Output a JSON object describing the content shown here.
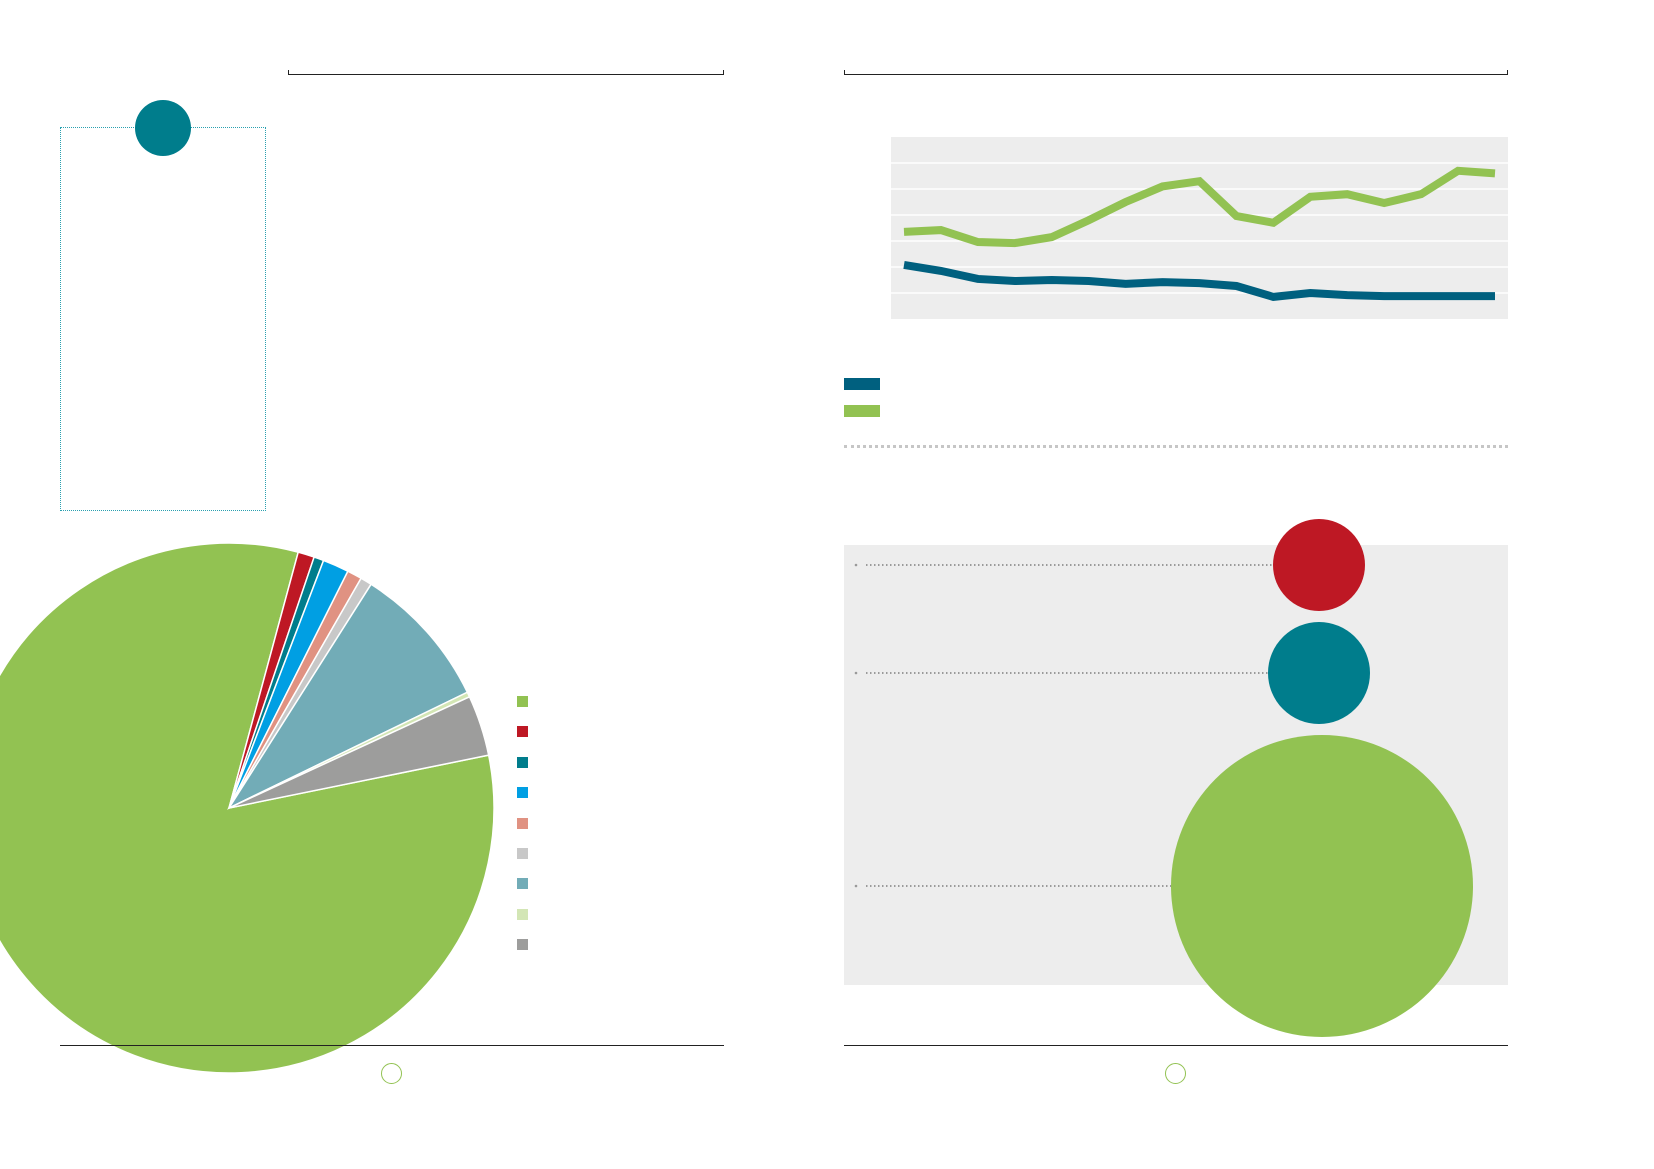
{
  "colors": {
    "teal": "#007d8c",
    "green": "#92c252",
    "navy": "#00607f",
    "red": "#be1824",
    "panel": "#ededed"
  },
  "chart_data": [
    {
      "type": "pie",
      "title": "",
      "slices": [
        {
          "name": "",
          "value": 82.4,
          "color": "#92c252"
        },
        {
          "name": "",
          "value": 1.0,
          "color": "#be1824"
        },
        {
          "name": "",
          "value": 0.6,
          "color": "#007d8c"
        },
        {
          "name": "",
          "value": 1.6,
          "color": "#009fe3"
        },
        {
          "name": "",
          "value": 0.9,
          "color": "#e09282"
        },
        {
          "name": "",
          "value": 0.7,
          "color": "#c8c8c8"
        },
        {
          "name": "",
          "value": 8.8,
          "color": "#72acb7"
        },
        {
          "name": "",
          "value": 0.3,
          "color": "#d3e6b5"
        },
        {
          "name": "",
          "value": 3.7,
          "color": "#9d9d9c"
        }
      ],
      "start_angle_deg": 78.5,
      "legend": "right"
    },
    {
      "type": "line",
      "title": "",
      "x": [
        1,
        2,
        3,
        4,
        5,
        6,
        7,
        8,
        9,
        10,
        11,
        12,
        13,
        14,
        15,
        16,
        17
      ],
      "ylim": [
        0,
        7
      ],
      "grid": true,
      "series": [
        {
          "name": "",
          "color": "#92c252",
          "values": [
            3.35,
            3.42,
            2.96,
            2.92,
            3.15,
            3.8,
            4.5,
            5.1,
            5.3,
            3.96,
            3.7,
            4.7,
            4.8,
            4.46,
            4.8,
            5.7,
            5.6
          ]
        },
        {
          "name": "",
          "color": "#00607f",
          "values": [
            2.08,
            1.85,
            1.54,
            1.46,
            1.5,
            1.46,
            1.35,
            1.42,
            1.38,
            1.27,
            0.85,
            1.0,
            0.92,
            0.88,
            0.88,
            0.88,
            0.88
          ]
        }
      ],
      "legend": "bottom-left"
    },
    {
      "type": "bubble",
      "title": "",
      "bubbles": [
        {
          "name": "",
          "value": 2116,
          "color": "#be1824"
        },
        {
          "name": "",
          "value": 2601,
          "color": "#007d8c"
        },
        {
          "name": "",
          "value": 22801,
          "color": "#92c252"
        }
      ]
    }
  ]
}
